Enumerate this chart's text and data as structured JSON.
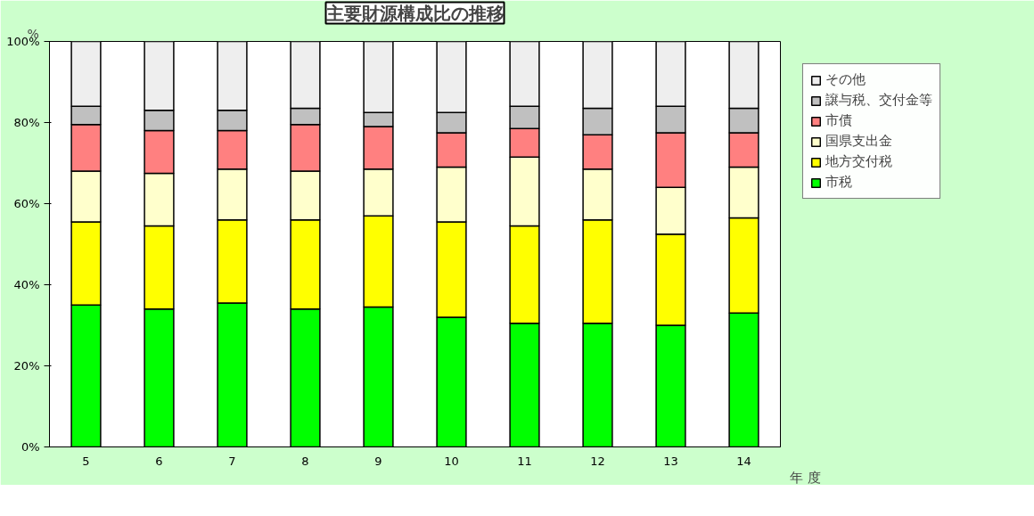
{
  "chart_data": {
    "type": "bar",
    "stacked": true,
    "title": "主要財源構成比の推移",
    "ylabel": "%",
    "xlabel": "年 度",
    "categories": [
      "5",
      "6",
      "7",
      "8",
      "9",
      "10",
      "11",
      "12",
      "13",
      "14"
    ],
    "series": [
      {
        "name": "市税",
        "color": "#00ff00",
        "values": [
          35,
          34,
          35.5,
          34,
          34.5,
          32,
          30.5,
          30.5,
          30,
          33
        ]
      },
      {
        "name": "地方交付税",
        "color": "#ffff00",
        "values": [
          20.5,
          20.5,
          20.5,
          22,
          22.5,
          23.5,
          24,
          25.5,
          22.5,
          23.5
        ]
      },
      {
        "name": "国県支出金",
        "color": "#ffffcc",
        "values": [
          12.5,
          13,
          12.5,
          12,
          11.5,
          13.5,
          17,
          12.5,
          11.5,
          12.5
        ]
      },
      {
        "name": "市債",
        "color": "#ff8080",
        "values": [
          11.5,
          10.5,
          9.5,
          11.5,
          10.5,
          8.5,
          7,
          8.5,
          13.5,
          8.5
        ]
      },
      {
        "name": "譲与税、交付金等",
        "color": "#c0c0c0",
        "values": [
          4.5,
          5,
          5,
          4,
          3.5,
          5,
          5.5,
          6.5,
          6.5,
          6
        ]
      },
      {
        "name": "その他",
        "color": "#eeeeee",
        "values": [
          16,
          17,
          17,
          16.5,
          17.5,
          17.5,
          16,
          16.5,
          16,
          16.5
        ]
      }
    ],
    "ylim": [
      0,
      100
    ],
    "yticks": [
      {
        "value": 0,
        "label": "0%"
      },
      {
        "value": 20,
        "label": "20%"
      },
      {
        "value": 40,
        "label": "40%"
      },
      {
        "value": 60,
        "label": "60%"
      },
      {
        "value": 80,
        "label": "80%"
      },
      {
        "value": 100,
        "label": "100%"
      }
    ],
    "grid": false,
    "legend": "right"
  }
}
